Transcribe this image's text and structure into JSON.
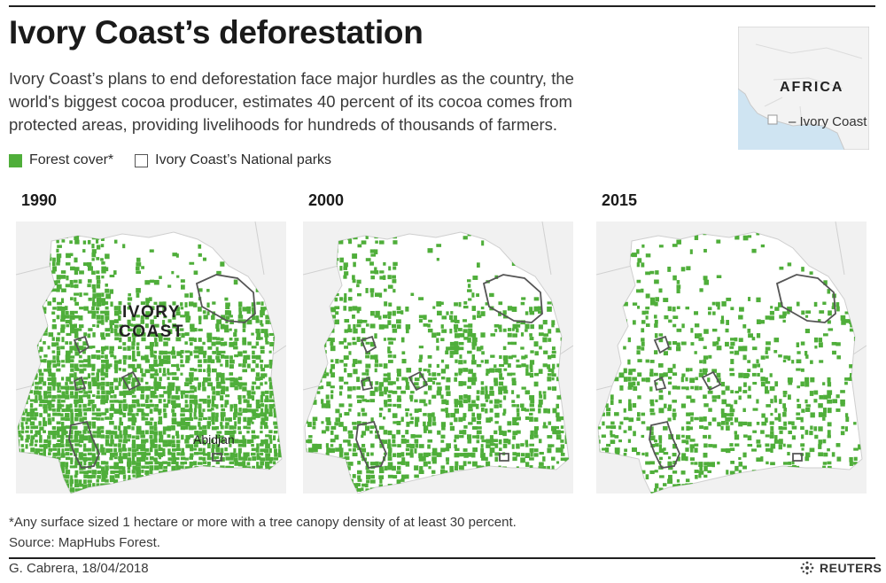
{
  "header": {
    "title": "Ivory Coast’s deforestation",
    "intro": "Ivory Coast’s plans to end deforestation face major hurdles as the country, the world's biggest cocoa producer, estimates 40 percent of its cocoa comes from protected areas, providing livelihoods for hundreds of thousands of farmers."
  },
  "inset_map": {
    "continent_label": "AFRICA",
    "country_label": "– Ivory Coast",
    "colors": {
      "water": "#cfe4f2",
      "land": "#f3f3f3",
      "highlight": "#ffffff"
    }
  },
  "legend": {
    "forest_label": "Forest cover*",
    "parks_label": "Ivory Coast’s National parks",
    "forest_color": "#4fae3a",
    "park_outline_color": "#555555"
  },
  "maps": [
    {
      "year": "1990",
      "country_label_line1": "IVORY",
      "country_label_line2": "COAST",
      "city_label": "Abidjan",
      "forest_density": 0.72
    },
    {
      "year": "2000",
      "forest_density": 0.42
    },
    {
      "year": "2015",
      "forest_density": 0.3
    }
  ],
  "footer": {
    "footnote": "*Any surface sized 1 hectare or more with a tree canopy density of at least 30 percent.",
    "source": "Source: MapHubs Forest.",
    "credit": "G. Cabrera, 18/04/2018",
    "brand": "REUTERS"
  }
}
